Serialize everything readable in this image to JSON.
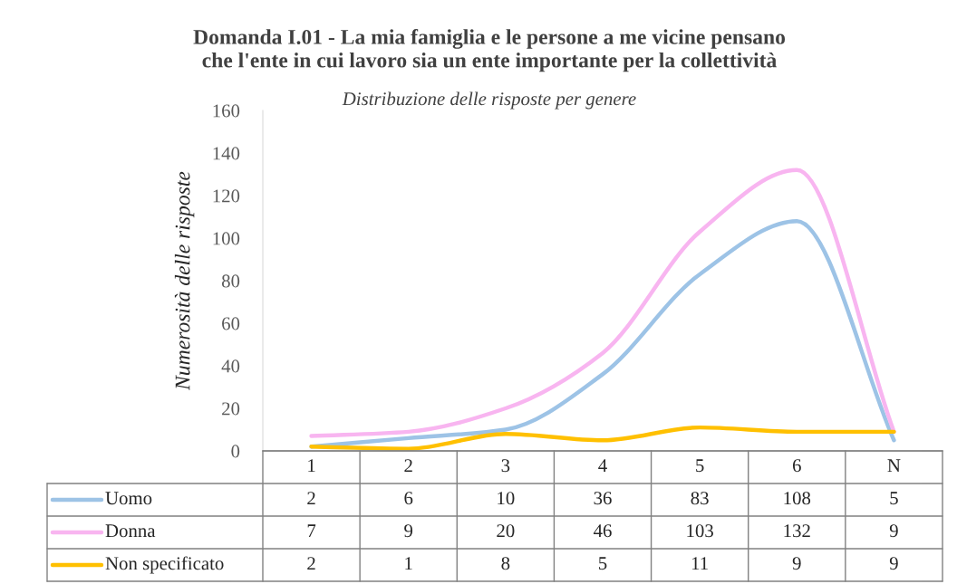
{
  "chart_data": {
    "type": "line",
    "title": "Domanda I.01 - La mia famiglia e le persone a me vicine pensano\nche l'ente in cui lavoro sia un ente importante per la collettività",
    "subtitle": "Distribuzione delle risposte per genere",
    "ylabel": "Numerosità delle risposte",
    "categories": [
      "1",
      "2",
      "3",
      "4",
      "5",
      "6",
      "N"
    ],
    "series": [
      {
        "name": "Uomo",
        "color": "#9dc3e6",
        "values": [
          2,
          6,
          10,
          36,
          83,
          108,
          5
        ]
      },
      {
        "name": "Donna",
        "color": "#f8b5f0",
        "values": [
          7,
          9,
          20,
          46,
          103,
          132,
          9
        ]
      },
      {
        "name": "Non specificato",
        "color": "#ffc000",
        "values": [
          2,
          1,
          8,
          5,
          11,
          9,
          9
        ]
      }
    ],
    "ylim": [
      0,
      160
    ],
    "yticks": [
      0,
      20,
      40,
      60,
      80,
      100,
      120,
      140,
      160
    ],
    "grid": false,
    "legend": "bottom",
    "data_labels": true,
    "marker": "none",
    "line_style": "solid"
  }
}
